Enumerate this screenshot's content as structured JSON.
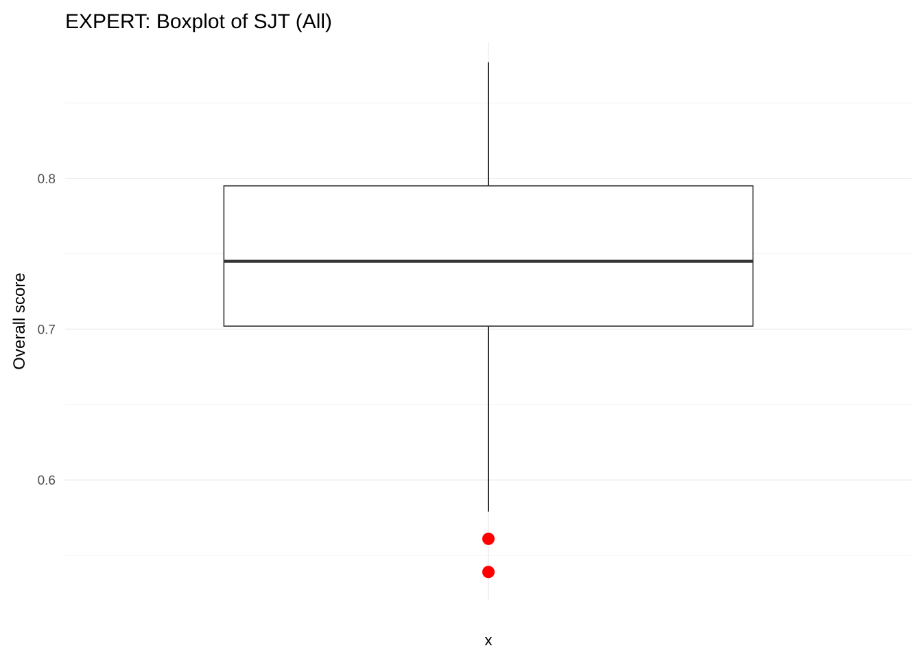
{
  "chart_data": {
    "type": "boxplot",
    "title": "EXPERT: Boxplot of SJT (All)",
    "xlabel": "",
    "ylabel": "Overall score",
    "categories": [
      "x"
    ],
    "ylim": [
      0.52,
      0.89
    ],
    "y_ticks": [
      0.6,
      0.7,
      0.8
    ],
    "y_tick_labels": [
      "0.6",
      "0.7",
      "0.8"
    ],
    "grid": true,
    "boxes": [
      {
        "category": "x",
        "lower_whisker": 0.579,
        "q1": 0.702,
        "median": 0.745,
        "q3": 0.795,
        "upper_whisker": 0.877,
        "outliers": [
          0.561,
          0.539
        ]
      }
    ],
    "colors": {
      "outlier": "#ff0000",
      "box_line": "#333333",
      "whisker": "#000000",
      "grid_major": "#ebebeb",
      "grid_minor": "#f3f3f3"
    }
  }
}
